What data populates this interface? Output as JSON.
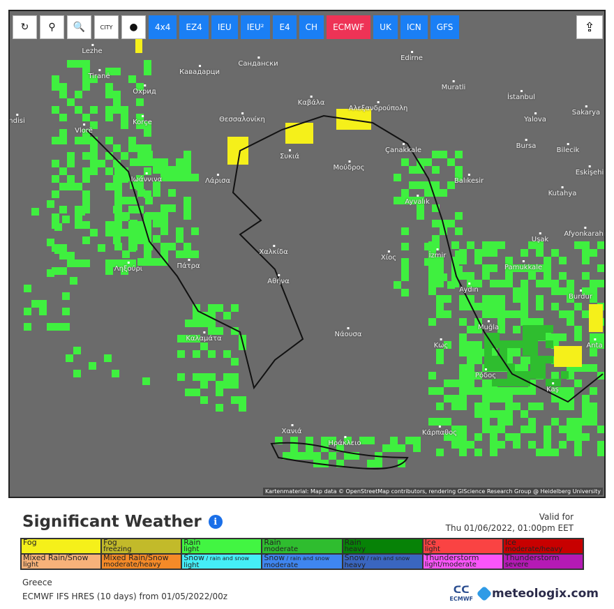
{
  "toolbar": {
    "tools": [
      {
        "name": "refresh-icon",
        "glyph": "↻"
      },
      {
        "name": "location-pin-icon",
        "glyph": "⚲"
      },
      {
        "name": "zoom-icon",
        "glyph": "🔍"
      },
      {
        "name": "city-labels-icon",
        "glyph": "CITY"
      },
      {
        "name": "dot-toggle-icon",
        "glyph": "●"
      }
    ],
    "models": [
      {
        "label": "4x4"
      },
      {
        "label": "EZ4"
      },
      {
        "label": "IEU"
      },
      {
        "label": "IEU²"
      },
      {
        "label": "E4"
      },
      {
        "label": "CH"
      },
      {
        "label": "ECMWF",
        "active": true
      },
      {
        "label": "UK"
      },
      {
        "label": "ICN"
      },
      {
        "label": "GFS"
      }
    ],
    "share_icon": "share-icon"
  },
  "map": {
    "cities": [
      "Lezhe",
      "Tiranë",
      "Кавадарци",
      "Сандански",
      "Edirne",
      "Охрид",
      "Muratli",
      "İstanbul",
      "Καβάλα",
      "Αλεξανδρούπολη",
      "Korçe",
      "Θεσσαλονίκη",
      "Yalova",
      "Sakarya",
      "ndisi",
      "Vlorë",
      "Bursa",
      "Bilecik",
      "Συκιά",
      "Çanakkale",
      "Eskişehi",
      "Ιωάννινα",
      "Λάρισα",
      "Μούδρος",
      "Balıkesir",
      "Kutahya",
      "Ayvalık",
      "Afyonkarahi",
      "Uşak",
      "Χαλκίδα",
      "Χίος",
      "İzmir",
      "Ληξούρι",
      "Πάτρα",
      "Αθήνα",
      "Pamukkale",
      "Aydın",
      "Burdur",
      "Muğla",
      "Νάουσα",
      "Καλαμάτα",
      "Κως",
      "Anta",
      "Ρόδος",
      "Kaş",
      "Χανιά",
      "Ηράκλειο",
      "Κάρπαθος"
    ],
    "attribution": "Kartenmaterial: Map data © OpenStreetMap contributors, rendering GIScience Research Group @ Heidelberg University",
    "colors": {
      "background": "#6b6b6b",
      "rain_light": "#3ff03f",
      "rain_moderate": "#2fbd2f",
      "fog": "#f5f01a"
    }
  },
  "header": {
    "title": "Significant Weather",
    "info_icon": "info-icon",
    "valid_label": "Valid for",
    "valid_time": "Thu 01/06/2022, 01:00pm EET"
  },
  "legend": [
    {
      "main": "Fog",
      "sub": "",
      "color": "#f5f01a"
    },
    {
      "main": "Fog",
      "sub": "freezing",
      "color": "#c2ba2a"
    },
    {
      "main": "Rain",
      "sub": "light",
      "color": "#42f542"
    },
    {
      "main": "Rain",
      "sub": "moderate",
      "color": "#2fbd2f"
    },
    {
      "main": "Rain",
      "sub": "heavy",
      "color": "#078207"
    },
    {
      "main": "Ice",
      "sub": "light",
      "color": "#fa4343"
    },
    {
      "main": "Ice",
      "sub": "moderate/heavy",
      "color": "#c80000"
    },
    {
      "main": "Mixed Rain/Snow",
      "sub": "light",
      "color": "#f7b27a"
    },
    {
      "main": "Mixed Rain/Snow",
      "sub": "moderate/heavy",
      "color": "#f58a28"
    },
    {
      "main": "Snow",
      "extra": " / rain and snow",
      "sub": "light",
      "color": "#45eef7"
    },
    {
      "main": "Snow",
      "extra": " / rain and snow",
      "sub": "moderate",
      "color": "#3f86f0"
    },
    {
      "main": "Snow",
      "extra": " / rain and snow",
      "sub": "heavy",
      "color": "#3a66c0"
    },
    {
      "main": "Thunderstorm",
      "sub": "light/moderate",
      "color": "#fa55fa"
    },
    {
      "main": "Thunderstorm",
      "sub": "severe",
      "color": "#b51ab5"
    }
  ],
  "footer": {
    "region": "Greece",
    "model_run": "ECMWF IFS HRES (10 days) from 01/05/2022/00z",
    "ecmwf_logo": "ECMWF",
    "brand": "meteologix.com"
  }
}
